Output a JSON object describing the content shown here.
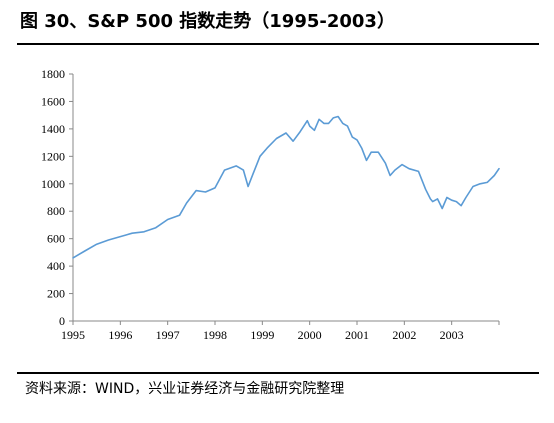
{
  "title": "图 30、S&P 500 指数走势（1995-2003）",
  "source": "资料来源：WIND，兴业证券经济与金融研究院整理",
  "chart_data": {
    "type": "line",
    "title": "",
    "xlabel": "",
    "ylabel": "",
    "ylim": [
      0,
      1800
    ],
    "yticks": [
      0,
      200,
      400,
      600,
      800,
      1000,
      1200,
      1400,
      1600,
      1800
    ],
    "xlim": [
      1995,
      2004
    ],
    "xticks": [
      "1995",
      "1996",
      "1997",
      "1998",
      "1999",
      "2000",
      "2001",
      "2002",
      "2003"
    ],
    "grid": false,
    "legend": "none",
    "series": [
      {
        "color": "#5b9bd5",
        "x": [
          1995.0,
          1995.25,
          1995.5,
          1995.75,
          1996.0,
          1996.25,
          1996.5,
          1996.75,
          1997.0,
          1997.25,
          1997.4,
          1997.6,
          1997.8,
          1998.0,
          1998.2,
          1998.45,
          1998.6,
          1998.7,
          1998.8,
          1998.95,
          1999.1,
          1999.3,
          1999.5,
          1999.65,
          1999.8,
          1999.95,
          2000.0,
          2000.1,
          2000.2,
          2000.3,
          2000.4,
          2000.5,
          2000.6,
          2000.7,
          2000.8,
          2000.9,
          2001.0,
          2001.1,
          2001.2,
          2001.3,
          2001.45,
          2001.6,
          2001.7,
          2001.8,
          2001.95,
          2002.1,
          2002.3,
          2002.45,
          2002.55,
          2002.6,
          2002.7,
          2002.8,
          2002.9,
          2003.0,
          2003.1,
          2003.2,
          2003.3,
          2003.45,
          2003.6,
          2003.75,
          2003.9,
          2004.0
        ],
        "values": [
          460,
          510,
          560,
          590,
          615,
          640,
          650,
          680,
          740,
          770,
          860,
          950,
          940,
          970,
          1100,
          1130,
          1100,
          980,
          1070,
          1200,
          1260,
          1330,
          1370,
          1310,
          1380,
          1460,
          1420,
          1390,
          1470,
          1440,
          1440,
          1480,
          1490,
          1440,
          1420,
          1340,
          1320,
          1260,
          1170,
          1230,
          1230,
          1150,
          1060,
          1100,
          1140,
          1110,
          1090,
          960,
          890,
          870,
          890,
          820,
          900,
          880,
          870,
          840,
          900,
          980,
          1000,
          1010,
          1060,
          1110
        ]
      }
    ]
  }
}
